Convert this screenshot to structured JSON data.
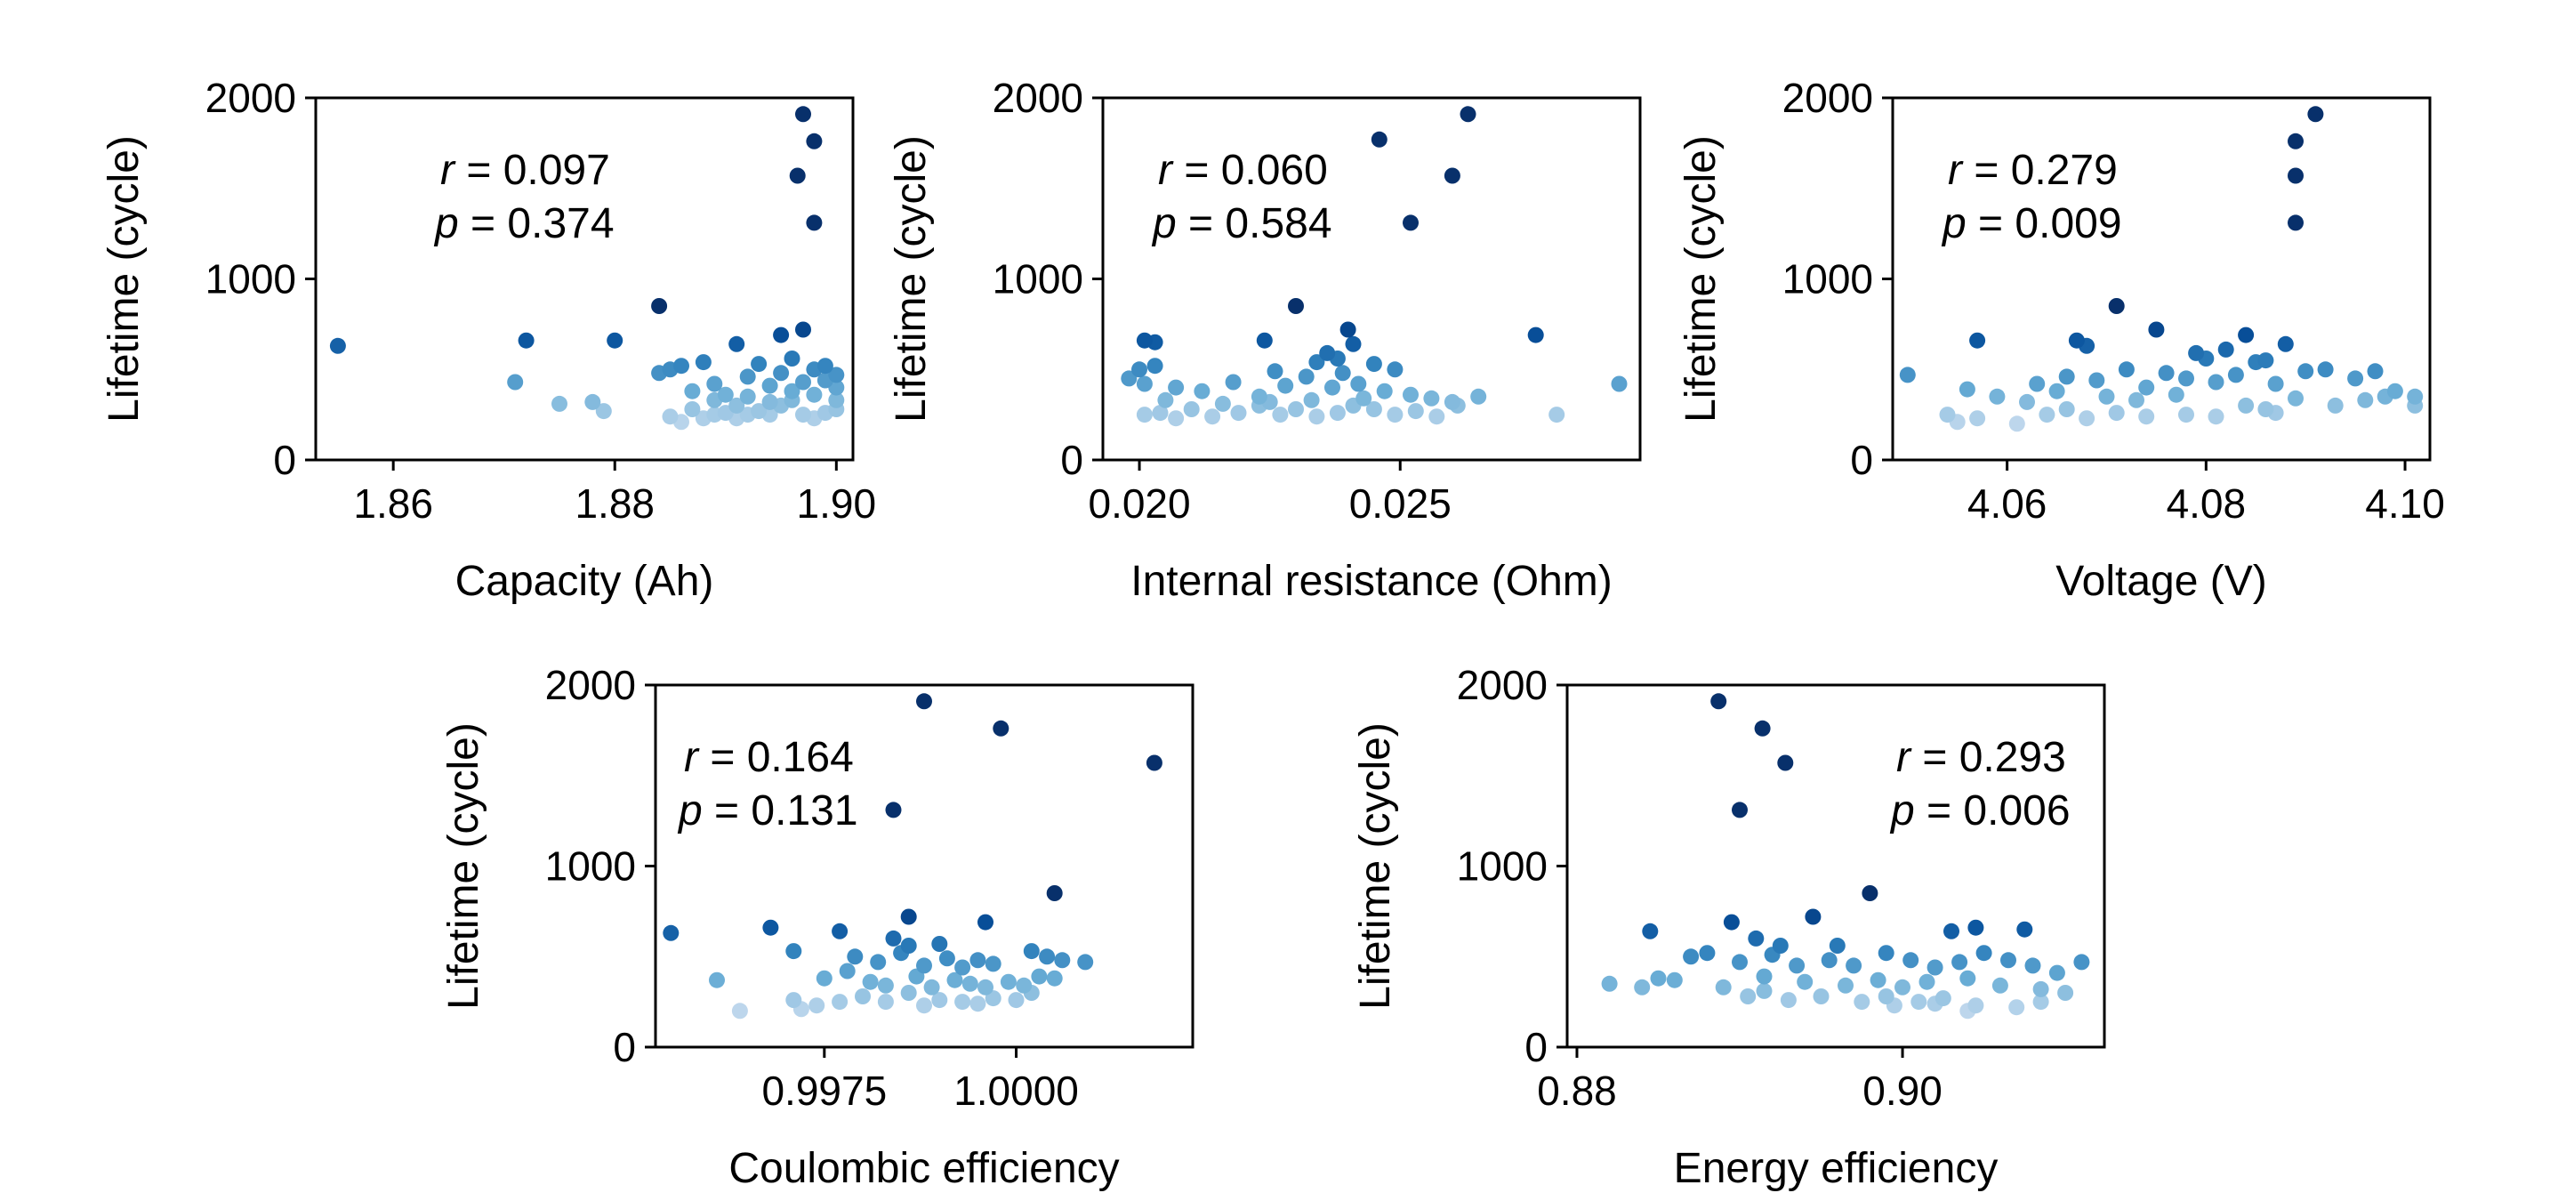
{
  "chart_data": [
    {
      "type": "scatter",
      "id": "capacity",
      "xlabel": "Capacity (Ah)",
      "ylabel": "Lifetime (cycle)",
      "xlim": [
        1.853,
        1.9015
      ],
      "ylim": [
        0,
        2000
      ],
      "xticks": [
        1.86,
        1.88,
        1.9
      ],
      "xtick_labels": [
        "1.86",
        "1.88",
        "1.90"
      ],
      "yticks": [
        0,
        1000,
        2000
      ],
      "ytick_labels": [
        "0",
        "1000",
        "2000"
      ],
      "r_label": "r",
      "r_text": " = 0.097",
      "p_label": "p",
      "p_text": " = 0.374",
      "stats_position": "upper-left",
      "points": [
        [
          1.855,
          630
        ],
        [
          1.872,
          660
        ],
        [
          1.88,
          660
        ],
        [
          1.884,
          850
        ],
        [
          1.891,
          640
        ],
        [
          1.895,
          690
        ],
        [
          1.897,
          720
        ],
        [
          1.897,
          1910
        ],
        [
          1.898,
          1760
        ],
        [
          1.8965,
          1570
        ],
        [
          1.898,
          1310
        ],
        [
          1.871,
          430
        ],
        [
          1.875,
          310
        ],
        [
          1.878,
          320
        ],
        [
          1.879,
          270
        ],
        [
          1.884,
          480
        ],
        [
          1.885,
          500
        ],
        [
          1.886,
          520
        ],
        [
          1.887,
          380
        ],
        [
          1.888,
          540
        ],
        [
          1.889,
          420
        ],
        [
          1.89,
          360
        ],
        [
          1.891,
          300
        ],
        [
          1.892,
          460
        ],
        [
          1.893,
          530
        ],
        [
          1.894,
          410
        ],
        [
          1.895,
          480
        ],
        [
          1.896,
          560
        ],
        [
          1.897,
          430
        ],
        [
          1.898,
          500
        ],
        [
          1.899,
          440
        ],
        [
          1.899,
          520
        ],
        [
          1.9,
          470
        ],
        [
          1.9,
          330
        ],
        [
          1.899,
          260
        ],
        [
          1.885,
          240
        ],
        [
          1.886,
          210
        ],
        [
          1.887,
          280
        ],
        [
          1.888,
          230
        ],
        [
          1.889,
          250
        ],
        [
          1.89,
          260
        ],
        [
          1.891,
          230
        ],
        [
          1.892,
          250
        ],
        [
          1.893,
          270
        ],
        [
          1.894,
          250
        ],
        [
          1.895,
          300
        ],
        [
          1.896,
          330
        ],
        [
          1.897,
          250
        ],
        [
          1.898,
          230
        ],
        [
          1.9,
          280
        ],
        [
          1.889,
          330
        ],
        [
          1.892,
          350
        ],
        [
          1.894,
          320
        ],
        [
          1.896,
          380
        ],
        [
          1.898,
          360
        ],
        [
          1.9,
          400
        ]
      ]
    },
    {
      "type": "scatter",
      "id": "resistance",
      "xlabel": "Internal resistance (Ohm)",
      "ylabel": "Lifetime (cycle)",
      "xlim": [
        0.0193,
        0.0296
      ],
      "ylim": [
        0,
        2000
      ],
      "xticks": [
        0.02,
        0.025
      ],
      "xtick_labels": [
        "0.020",
        "0.025"
      ],
      "yticks": [
        0,
        1000,
        2000
      ],
      "ytick_labels": [
        "0",
        "1000",
        "2000"
      ],
      "r_label": "r",
      "r_text": " = 0.060",
      "p_label": "p",
      "p_text": " = 0.584",
      "stats_position": "upper-left",
      "points": [
        [
          0.0263,
          1910
        ],
        [
          0.0246,
          1770
        ],
        [
          0.026,
          1570
        ],
        [
          0.0252,
          1310
        ],
        [
          0.023,
          850
        ],
        [
          0.024,
          720
        ],
        [
          0.0276,
          690
        ],
        [
          0.0241,
          640
        ],
        [
          0.0224,
          660
        ],
        [
          0.0203,
          650
        ],
        [
          0.0201,
          660
        ],
        [
          0.0236,
          590
        ],
        [
          0.0238,
          560
        ],
        [
          0.0234,
          540
        ],
        [
          0.0245,
          530
        ],
        [
          0.0249,
          500
        ],
        [
          0.0239,
          480
        ],
        [
          0.0226,
          490
        ],
        [
          0.02,
          500
        ],
        [
          0.0203,
          520
        ],
        [
          0.0198,
          450
        ],
        [
          0.0201,
          420
        ],
        [
          0.0207,
          400
        ],
        [
          0.0212,
          380
        ],
        [
          0.0218,
          430
        ],
        [
          0.0223,
          350
        ],
        [
          0.0228,
          410
        ],
        [
          0.0232,
          460
        ],
        [
          0.0237,
          400
        ],
        [
          0.0242,
          420
        ],
        [
          0.0247,
          380
        ],
        [
          0.0252,
          360
        ],
        [
          0.0256,
          340
        ],
        [
          0.026,
          320
        ],
        [
          0.0265,
          350
        ],
        [
          0.0292,
          420
        ],
        [
          0.0201,
          250
        ],
        [
          0.0204,
          260
        ],
        [
          0.0207,
          230
        ],
        [
          0.021,
          280
        ],
        [
          0.0214,
          240
        ],
        [
          0.0219,
          260
        ],
        [
          0.0223,
          300
        ],
        [
          0.0227,
          250
        ],
        [
          0.023,
          280
        ],
        [
          0.0234,
          240
        ],
        [
          0.0238,
          260
        ],
        [
          0.0241,
          300
        ],
        [
          0.0245,
          280
        ],
        [
          0.0249,
          250
        ],
        [
          0.0253,
          270
        ],
        [
          0.0257,
          240
        ],
        [
          0.0261,
          300
        ],
        [
          0.028,
          250
        ],
        [
          0.0205,
          330
        ],
        [
          0.0216,
          310
        ],
        [
          0.0225,
          320
        ],
        [
          0.0233,
          330
        ],
        [
          0.0243,
          340
        ]
      ]
    },
    {
      "type": "scatter",
      "id": "voltage",
      "xlabel": "Voltage (V)",
      "ylabel": "Lifetime (cycle)",
      "xlim": [
        4.0485,
        4.1025
      ],
      "ylim": [
        0,
        2000
      ],
      "xticks": [
        4.06,
        4.08,
        4.1
      ],
      "xtick_labels": [
        "4.06",
        "4.08",
        "4.10"
      ],
      "yticks": [
        0,
        1000,
        2000
      ],
      "ytick_labels": [
        "0",
        "1000",
        "2000"
      ],
      "r_label": "r",
      "r_text": " = 0.279",
      "p_label": "p",
      "p_text": " = 0.009",
      "stats_position": "upper-left",
      "points": [
        [
          4.091,
          1910
        ],
        [
          4.089,
          1760
        ],
        [
          4.089,
          1570
        ],
        [
          4.089,
          1310
        ],
        [
          4.071,
          850
        ],
        [
          4.075,
          720
        ],
        [
          4.084,
          690
        ],
        [
          4.067,
          660
        ],
        [
          4.057,
          660
        ],
        [
          4.068,
          630
        ],
        [
          4.088,
          640
        ],
        [
          4.079,
          590
        ],
        [
          4.082,
          610
        ],
        [
          4.08,
          560
        ],
        [
          4.085,
          540
        ],
        [
          4.086,
          550
        ],
        [
          4.072,
          500
        ],
        [
          4.05,
          470
        ],
        [
          4.063,
          420
        ],
        [
          4.066,
          460
        ],
        [
          4.069,
          440
        ],
        [
          4.074,
          400
        ],
        [
          4.076,
          480
        ],
        [
          4.078,
          450
        ],
        [
          4.081,
          430
        ],
        [
          4.083,
          470
        ],
        [
          4.087,
          420
        ],
        [
          4.09,
          490
        ],
        [
          4.092,
          500
        ],
        [
          4.095,
          450
        ],
        [
          4.097,
          490
        ],
        [
          4.099,
          380
        ],
        [
          4.101,
          350
        ],
        [
          4.056,
          390
        ],
        [
          4.059,
          350
        ],
        [
          4.062,
          320
        ],
        [
          4.065,
          380
        ],
        [
          4.07,
          350
        ],
        [
          4.073,
          330
        ],
        [
          4.077,
          360
        ],
        [
          4.084,
          300
        ],
        [
          4.086,
          280
        ],
        [
          4.089,
          340
        ],
        [
          4.093,
          300
        ],
        [
          4.096,
          330
        ],
        [
          4.098,
          350
        ],
        [
          4.101,
          300
        ],
        [
          4.054,
          250
        ],
        [
          4.057,
          230
        ],
        [
          4.061,
          200
        ],
        [
          4.064,
          250
        ],
        [
          4.068,
          230
        ],
        [
          4.071,
          260
        ],
        [
          4.074,
          240
        ],
        [
          4.078,
          250
        ],
        [
          4.081,
          240
        ],
        [
          4.087,
          260
        ],
        [
          4.055,
          210
        ],
        [
          4.066,
          280
        ]
      ]
    },
    {
      "type": "scatter",
      "id": "coulombic",
      "xlabel": "Coulombic efficiency",
      "ylabel": "Lifetime (cycle)",
      "xlim": [
        0.9953,
        1.0023
      ],
      "ylim": [
        0,
        2000
      ],
      "xticks": [
        0.9975,
        1.0
      ],
      "xtick_labels": [
        "0.9975",
        "1.0000"
      ],
      "yticks": [
        0,
        1000,
        2000
      ],
      "ytick_labels": [
        "0",
        "1000",
        "2000"
      ],
      "r_label": "r",
      "r_text": " = 0.164",
      "p_label": "p",
      "p_text": " = 0.131",
      "stats_position": "upper-left",
      "points": [
        [
          0.9988,
          1910
        ],
        [
          0.9998,
          1760
        ],
        [
          1.0018,
          1570
        ],
        [
          0.9984,
          1310
        ],
        [
          1.0005,
          850
        ],
        [
          0.9986,
          720
        ],
        [
          0.9996,
          690
        ],
        [
          0.9968,
          660
        ],
        [
          0.9977,
          640
        ],
        [
          0.9955,
          630
        ],
        [
          0.9984,
          600
        ],
        [
          0.9986,
          560
        ],
        [
          0.999,
          570
        ],
        [
          0.9971,
          530
        ],
        [
          0.9979,
          500
        ],
        [
          0.9982,
          470
        ],
        [
          0.9985,
          520
        ],
        [
          0.9988,
          450
        ],
        [
          0.9991,
          490
        ],
        [
          0.9993,
          440
        ],
        [
          0.9995,
          480
        ],
        [
          0.9997,
          460
        ],
        [
          1.0002,
          530
        ],
        [
          1.0004,
          500
        ],
        [
          1.0006,
          480
        ],
        [
          1.0009,
          470
        ],
        [
          0.9975,
          380
        ],
        [
          0.9978,
          420
        ],
        [
          0.9981,
          360
        ],
        [
          0.9983,
          340
        ],
        [
          0.9987,
          390
        ],
        [
          0.9989,
          330
        ],
        [
          0.9992,
          370
        ],
        [
          0.9994,
          350
        ],
        [
          0.9996,
          330
        ],
        [
          0.9999,
          360
        ],
        [
          1.0001,
          340
        ],
        [
          1.0003,
          390
        ],
        [
          1.0005,
          380
        ],
        [
          0.9961,
          370
        ],
        [
          0.9971,
          260
        ],
        [
          0.9974,
          230
        ],
        [
          0.9977,
          250
        ],
        [
          0.998,
          280
        ],
        [
          0.9983,
          250
        ],
        [
          0.9986,
          300
        ],
        [
          0.9988,
          230
        ],
        [
          0.999,
          260
        ],
        [
          0.9993,
          250
        ],
        [
          0.9995,
          240
        ],
        [
          0.9997,
          270
        ],
        [
          1.0,
          260
        ],
        [
          1.0002,
          300
        ],
        [
          0.9964,
          200
        ],
        [
          0.9972,
          210
        ]
      ]
    },
    {
      "type": "scatter",
      "id": "energy",
      "xlabel": "Energy efficiency",
      "ylabel": "Lifetime (cycle)",
      "xlim": [
        0.8794,
        0.9124
      ],
      "ylim": [
        0,
        2000
      ],
      "xticks": [
        0.88,
        0.9
      ],
      "xtick_labels": [
        "0.88",
        "0.90"
      ],
      "yticks": [
        0,
        1000,
        2000
      ],
      "ytick_labels": [
        "0",
        "1000",
        "2000"
      ],
      "r_label": "r",
      "r_text": " = 0.293",
      "p_label": "p",
      "p_text": " = 0.006",
      "stats_position": "upper-right",
      "points": [
        [
          0.8887,
          1910
        ],
        [
          0.8914,
          1760
        ],
        [
          0.8928,
          1570
        ],
        [
          0.89,
          1310
        ],
        [
          0.898,
          850
        ],
        [
          0.8945,
          720
        ],
        [
          0.8895,
          690
        ],
        [
          0.8845,
          640
        ],
        [
          0.891,
          600
        ],
        [
          0.8925,
          560
        ],
        [
          0.896,
          560
        ],
        [
          0.903,
          640
        ],
        [
          0.9045,
          660
        ],
        [
          0.9075,
          650
        ],
        [
          0.888,
          520
        ],
        [
          0.887,
          500
        ],
        [
          0.89,
          470
        ],
        [
          0.892,
          510
        ],
        [
          0.8935,
          450
        ],
        [
          0.8955,
          480
        ],
        [
          0.897,
          450
        ],
        [
          0.899,
          520
        ],
        [
          0.9005,
          480
        ],
        [
          0.902,
          440
        ],
        [
          0.9035,
          470
        ],
        [
          0.905,
          520
        ],
        [
          0.9065,
          480
        ],
        [
          0.908,
          450
        ],
        [
          0.9095,
          410
        ],
        [
          0.911,
          470
        ],
        [
          0.885,
          380
        ],
        [
          0.882,
          350
        ],
        [
          0.884,
          330
        ],
        [
          0.886,
          370
        ],
        [
          0.889,
          330
        ],
        [
          0.8915,
          390
        ],
        [
          0.894,
          360
        ],
        [
          0.8965,
          340
        ],
        [
          0.8985,
          370
        ],
        [
          0.9,
          330
        ],
        [
          0.9015,
          360
        ],
        [
          0.904,
          380
        ],
        [
          0.906,
          340
        ],
        [
          0.9085,
          320
        ],
        [
          0.91,
          300
        ],
        [
          0.8905,
          280
        ],
        [
          0.893,
          260
        ],
        [
          0.895,
          280
        ],
        [
          0.8975,
          250
        ],
        [
          0.8995,
          230
        ],
        [
          0.901,
          250
        ],
        [
          0.9025,
          270
        ],
        [
          0.9045,
          230
        ],
        [
          0.899,
          280
        ],
        [
          0.902,
          240
        ],
        [
          0.904,
          200
        ],
        [
          0.907,
          220
        ],
        [
          0.9085,
          250
        ],
        [
          0.8915,
          310
        ]
      ]
    }
  ]
}
